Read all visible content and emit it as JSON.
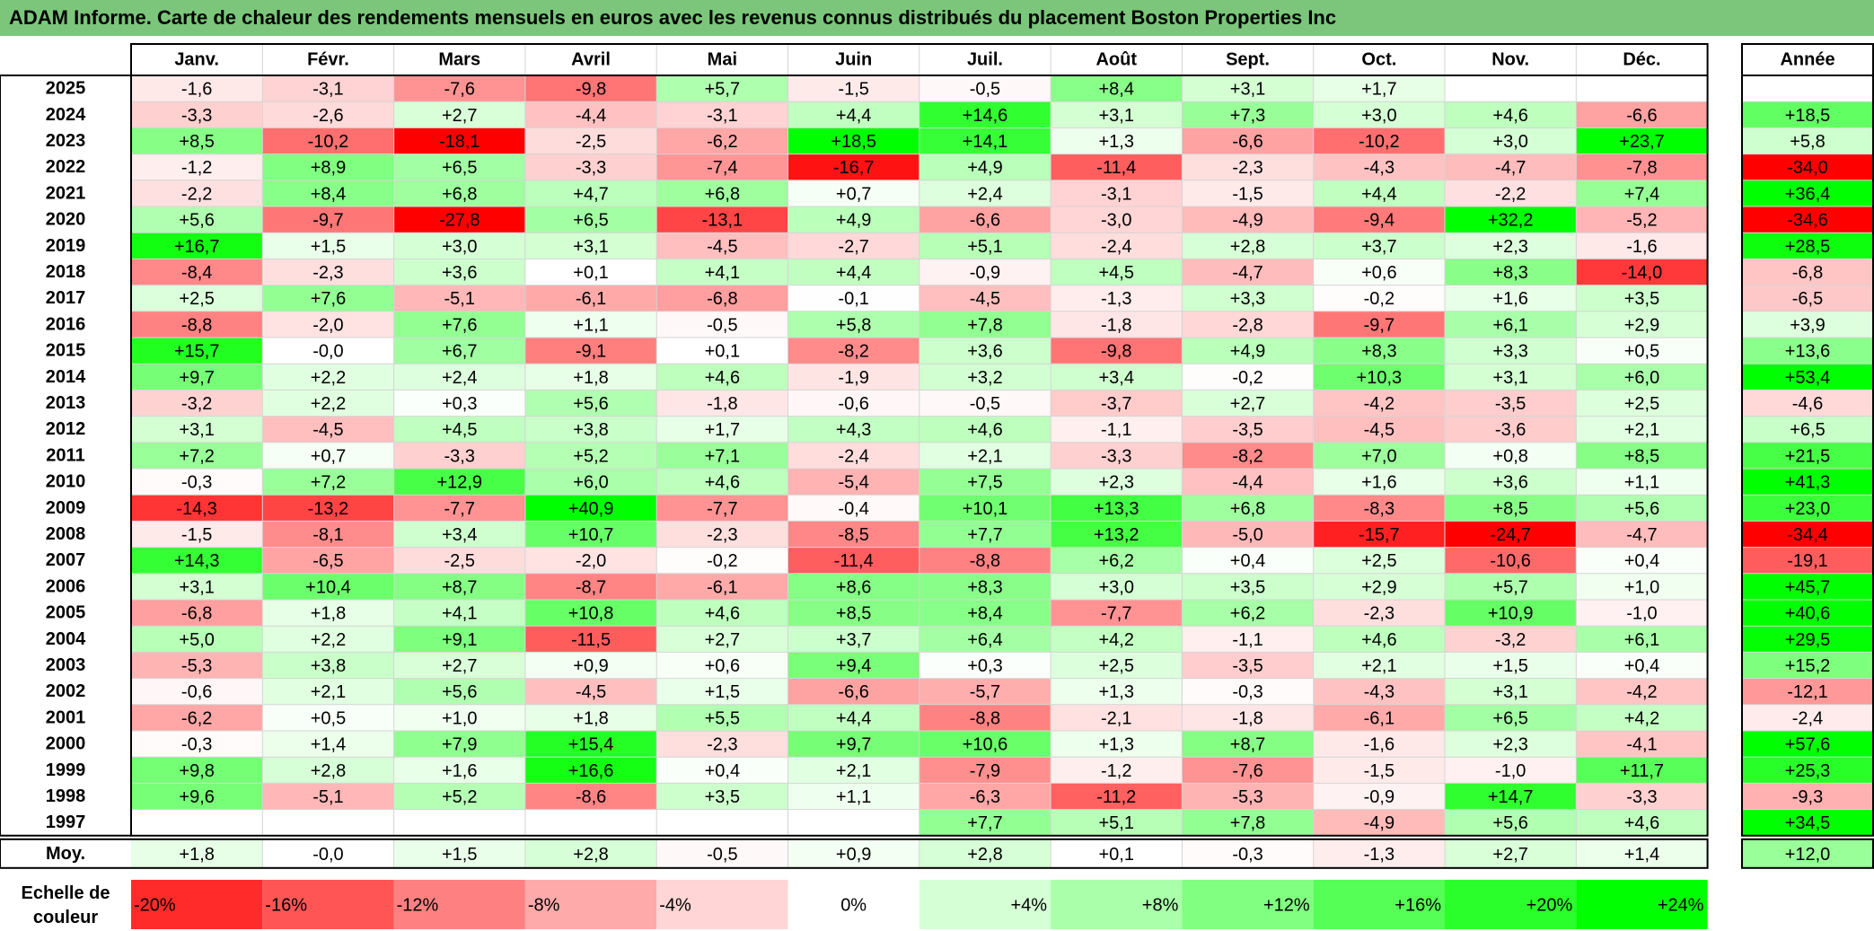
{
  "title": "ADAM Informe. Carte de chaleur des rendements mensuels en euros avec les revenus connus distribués du placement Boston Properties Inc",
  "chart_data": {
    "type": "heatmap",
    "title": "ADAM Informe. Carte de chaleur des rendements mensuels en euros avec les revenus connus distribués du placement Boston Properties Inc",
    "columns": [
      "Janv.",
      "Févr.",
      "Mars",
      "Avril",
      "Mai",
      "Juin",
      "Juil.",
      "Août",
      "Sept.",
      "Oct.",
      "Nov.",
      "Déc."
    ],
    "annual_label": "Année",
    "rows": [
      {
        "year": "2025",
        "values": [
          "-1,6",
          "-3,1",
          "-7,6",
          "-9,8",
          "+5,7",
          "-1,5",
          "-0,5",
          "+8,4",
          "+3,1",
          "+1,7",
          "",
          ""
        ],
        "annual": ""
      },
      {
        "year": "2024",
        "values": [
          "-3,3",
          "-2,6",
          "+2,7",
          "-4,4",
          "-3,1",
          "+4,4",
          "+14,6",
          "+3,1",
          "+7,3",
          "+3,0",
          "+4,6",
          "-6,6"
        ],
        "annual": "+18,5"
      },
      {
        "year": "2023",
        "values": [
          "+8,5",
          "-10,2",
          "-18,1",
          "-2,5",
          "-6,2",
          "+18,5",
          "+14,1",
          "+1,3",
          "-6,6",
          "-10,2",
          "+3,0",
          "+23,7"
        ],
        "annual": "+5,8"
      },
      {
        "year": "2022",
        "values": [
          "-1,2",
          "+8,9",
          "+6,5",
          "-3,3",
          "-7,4",
          "-16,7",
          "+4,9",
          "-11,4",
          "-2,3",
          "-4,3",
          "-4,7",
          "-7,8"
        ],
        "annual": "-34,0"
      },
      {
        "year": "2021",
        "values": [
          "-2,2",
          "+8,4",
          "+6,8",
          "+4,7",
          "+6,8",
          "+0,7",
          "+2,4",
          "-3,1",
          "-1,5",
          "+4,4",
          "-2,2",
          "+7,4"
        ],
        "annual": "+36,4"
      },
      {
        "year": "2020",
        "values": [
          "+5,6",
          "-9,7",
          "-27,8",
          "+6,5",
          "-13,1",
          "+4,9",
          "-6,6",
          "-3,0",
          "-4,9",
          "-9,4",
          "+32,2",
          "-5,2"
        ],
        "annual": "-34,6"
      },
      {
        "year": "2019",
        "values": [
          "+16,7",
          "+1,5",
          "+3,0",
          "+3,1",
          "-4,5",
          "-2,7",
          "+5,1",
          "-2,4",
          "+2,8",
          "+3,7",
          "+2,3",
          "-1,6"
        ],
        "annual": "+28,5"
      },
      {
        "year": "2018",
        "values": [
          "-8,4",
          "-2,3",
          "+3,6",
          "+0,1",
          "+4,1",
          "+4,4",
          "-0,9",
          "+4,5",
          "-4,7",
          "+0,6",
          "+8,3",
          "-14,0"
        ],
        "annual": "-6,8"
      },
      {
        "year": "2017",
        "values": [
          "+2,5",
          "+7,6",
          "-5,1",
          "-6,1",
          "-6,8",
          "-0,1",
          "-4,5",
          "-1,3",
          "+3,3",
          "-0,2",
          "+1,6",
          "+3,5"
        ],
        "annual": "-6,5"
      },
      {
        "year": "2016",
        "values": [
          "-8,8",
          "-2,0",
          "+7,6",
          "+1,1",
          "-0,5",
          "+5,8",
          "+7,8",
          "-1,8",
          "-2,8",
          "-9,7",
          "+6,1",
          "+2,9"
        ],
        "annual": "+3,9"
      },
      {
        "year": "2015",
        "values": [
          "+15,7",
          "-0,0",
          "+6,7",
          "-9,1",
          "+0,1",
          "-8,2",
          "+3,6",
          "-9,8",
          "+4,9",
          "+8,3",
          "+3,3",
          "+0,5"
        ],
        "annual": "+13,6"
      },
      {
        "year": "2014",
        "values": [
          "+9,7",
          "+2,2",
          "+2,4",
          "+1,8",
          "+4,6",
          "-1,9",
          "+3,2",
          "+3,4",
          "-0,2",
          "+10,3",
          "+3,1",
          "+6,0"
        ],
        "annual": "+53,4"
      },
      {
        "year": "2013",
        "values": [
          "-3,2",
          "+2,2",
          "+0,3",
          "+5,6",
          "-1,8",
          "-0,6",
          "-0,5",
          "-3,7",
          "+2,7",
          "-4,2",
          "-3,5",
          "+2,5"
        ],
        "annual": "-4,6"
      },
      {
        "year": "2012",
        "values": [
          "+3,1",
          "-4,5",
          "+4,5",
          "+3,8",
          "+1,7",
          "+4,3",
          "+4,6",
          "-1,1",
          "-3,5",
          "-4,5",
          "-3,6",
          "+2,1"
        ],
        "annual": "+6,5"
      },
      {
        "year": "2011",
        "values": [
          "+7,2",
          "+0,7",
          "-3,3",
          "+5,2",
          "+7,1",
          "-2,4",
          "+2,1",
          "-3,3",
          "-8,2",
          "+7,0",
          "+0,8",
          "+8,5"
        ],
        "annual": "+21,5"
      },
      {
        "year": "2010",
        "values": [
          "-0,3",
          "+7,2",
          "+12,9",
          "+6,0",
          "+4,6",
          "-5,4",
          "+7,5",
          "+2,3",
          "-4,4",
          "+1,6",
          "+3,6",
          "+1,1"
        ],
        "annual": "+41,3"
      },
      {
        "year": "2009",
        "values": [
          "-14,3",
          "-13,2",
          "-7,7",
          "+40,9",
          "-7,7",
          "-0,4",
          "+10,1",
          "+13,3",
          "+6,8",
          "-8,3",
          "+8,5",
          "+5,6"
        ],
        "annual": "+23,0"
      },
      {
        "year": "2008",
        "values": [
          "-1,5",
          "-8,1",
          "+3,4",
          "+10,7",
          "-2,3",
          "-8,5",
          "+7,7",
          "+13,2",
          "-5,0",
          "-15,7",
          "-24,7",
          "-4,7"
        ],
        "annual": "-34,4"
      },
      {
        "year": "2007",
        "values": [
          "+14,3",
          "-6,5",
          "-2,5",
          "-2,0",
          "-0,2",
          "-11,4",
          "-8,8",
          "+6,2",
          "+0,4",
          "+2,5",
          "-10,6",
          "+0,4"
        ],
        "annual": "-19,1"
      },
      {
        "year": "2006",
        "values": [
          "+3,1",
          "+10,4",
          "+8,7",
          "-8,7",
          "-6,1",
          "+8,6",
          "+8,3",
          "+3,0",
          "+3,5",
          "+2,9",
          "+5,7",
          "+1,0"
        ],
        "annual": "+45,7"
      },
      {
        "year": "2005",
        "values": [
          "-6,8",
          "+1,8",
          "+4,1",
          "+10,8",
          "+4,6",
          "+8,5",
          "+8,4",
          "-7,7",
          "+6,2",
          "-2,3",
          "+10,9",
          "-1,0"
        ],
        "annual": "+40,6"
      },
      {
        "year": "2004",
        "values": [
          "+5,0",
          "+2,2",
          "+9,1",
          "-11,5",
          "+2,7",
          "+3,7",
          "+6,4",
          "+4,2",
          "-1,1",
          "+4,6",
          "-3,2",
          "+6,1"
        ],
        "annual": "+29,5"
      },
      {
        "year": "2003",
        "values": [
          "-5,3",
          "+3,8",
          "+2,7",
          "+0,9",
          "+0,6",
          "+9,4",
          "+0,3",
          "+2,5",
          "-3,5",
          "+2,1",
          "+1,5",
          "+0,4"
        ],
        "annual": "+15,2"
      },
      {
        "year": "2002",
        "values": [
          "-0,6",
          "+2,1",
          "+5,6",
          "-4,5",
          "+1,5",
          "-6,6",
          "-5,7",
          "+1,3",
          "-0,3",
          "-4,3",
          "+3,1",
          "-4,2"
        ],
        "annual": "-12,1"
      },
      {
        "year": "2001",
        "values": [
          "-6,2",
          "+0,5",
          "+1,0",
          "+1,8",
          "+5,5",
          "+4,4",
          "-8,8",
          "-2,1",
          "-1,8",
          "-6,1",
          "+6,5",
          "+4,2"
        ],
        "annual": "-2,4"
      },
      {
        "year": "2000",
        "values": [
          "-0,3",
          "+1,4",
          "+7,9",
          "+15,4",
          "-2,3",
          "+9,7",
          "+10,6",
          "+1,3",
          "+8,7",
          "-1,6",
          "+2,3",
          "-4,1"
        ],
        "annual": "+57,6"
      },
      {
        "year": "1999",
        "values": [
          "+9,8",
          "+2,8",
          "+1,6",
          "+16,6",
          "+0,4",
          "+2,1",
          "-7,9",
          "-1,2",
          "-7,6",
          "-1,5",
          "-1,0",
          "+11,7"
        ],
        "annual": "+25,3"
      },
      {
        "year": "1998",
        "values": [
          "+9,6",
          "-5,1",
          "+5,2",
          "-8,6",
          "+3,5",
          "+1,1",
          "-6,3",
          "-11,2",
          "-5,3",
          "-0,9",
          "+14,7",
          "-3,3"
        ],
        "annual": "-9,3"
      },
      {
        "year": "1997",
        "values": [
          "",
          "",
          "",
          "",
          "",
          "",
          "+7,7",
          "+5,1",
          "+7,8",
          "-4,9",
          "+5,6",
          "+4,6"
        ],
        "annual": "+34,5"
      }
    ],
    "average": {
      "label": "Moy.",
      "values": [
        "+1,8",
        "-0,0",
        "+1,5",
        "+2,8",
        "-0,5",
        "+0,9",
        "+2,8",
        "+0,1",
        "-0,3",
        "-1,3",
        "+2,7",
        "+1,4"
      ],
      "annual": "+12,0"
    },
    "legend": {
      "label_line1": "Echelle de",
      "label_line2": "couleur",
      "items": [
        "-20%",
        "-16%",
        "-12%",
        "-8%",
        "-4%",
        "0%",
        "+4%",
        "+8%",
        "+12%",
        "+16%",
        "+20%",
        "+24%"
      ],
      "values": [
        -20,
        -16,
        -12,
        -8,
        -4,
        0,
        4,
        8,
        12,
        16,
        20,
        24
      ]
    },
    "colors": {
      "negative_max": "#ff0000",
      "neutral": "#ffffff",
      "positive_max": "#00ff00",
      "title_bar": "#7bc67b"
    }
  }
}
